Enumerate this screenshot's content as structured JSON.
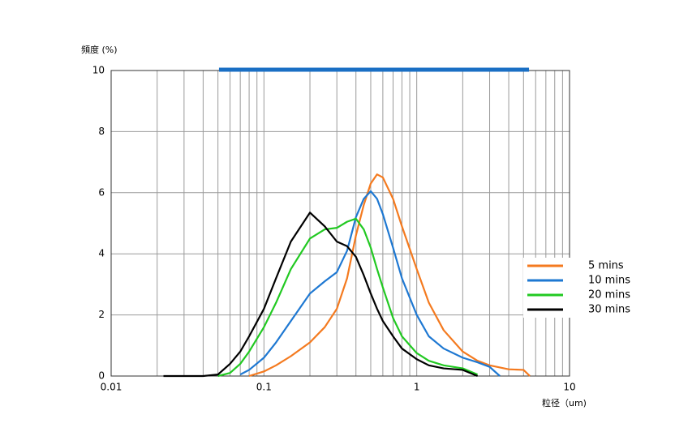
{
  "chart_data": {
    "type": "line",
    "y_label": "頻度 (%)",
    "x_label": "粒径（um)",
    "x": [
      0.022,
      0.03,
      0.04,
      0.05,
      0.06,
      0.07,
      0.08,
      0.1,
      0.12,
      0.15,
      0.2,
      0.25,
      0.3,
      0.35,
      0.4,
      0.45,
      0.5,
      0.55,
      0.6,
      0.7,
      0.8,
      1,
      1.2,
      1.5,
      2,
      2.5,
      3,
      3.5,
      4,
      5,
      5.5
    ],
    "series": [
      {
        "name": "5 mins",
        "color": "#f47a1f",
        "values": [
          null,
          null,
          null,
          null,
          null,
          null,
          0,
          0.15,
          0.35,
          0.65,
          1.1,
          1.6,
          2.2,
          3.2,
          4.6,
          5.6,
          6.3,
          6.6,
          6.5,
          5.8,
          4.9,
          3.5,
          2.4,
          1.5,
          0.8,
          0.5,
          0.35,
          0.28,
          0.22,
          0.2,
          0
        ]
      },
      {
        "name": "10 mins",
        "color": "#1e78d2",
        "values": [
          null,
          null,
          null,
          null,
          null,
          0.05,
          0.2,
          0.6,
          1.1,
          1.8,
          2.7,
          3.1,
          3.4,
          4.1,
          5.2,
          5.8,
          6.05,
          5.8,
          5.3,
          4.2,
          3.2,
          2.0,
          1.3,
          0.9,
          0.6,
          0.45,
          0.3,
          0,
          null,
          null,
          null
        ]
      },
      {
        "name": "20 mins",
        "color": "#22c922",
        "values": [
          null,
          null,
          null,
          0,
          0.1,
          0.4,
          0.8,
          1.6,
          2.4,
          3.5,
          4.5,
          4.8,
          4.85,
          5.05,
          5.15,
          4.8,
          4.2,
          3.5,
          2.9,
          1.9,
          1.3,
          0.75,
          0.5,
          0.35,
          0.25,
          0.05,
          null,
          null,
          null,
          null,
          null
        ]
      },
      {
        "name": "30 mins",
        "color": "#000000",
        "values": [
          0,
          0,
          0,
          0.05,
          0.4,
          0.8,
          1.3,
          2.2,
          3.2,
          4.4,
          5.35,
          4.9,
          4.4,
          4.25,
          3.9,
          3.3,
          2.7,
          2.2,
          1.8,
          1.3,
          0.9,
          0.55,
          0.35,
          0.25,
          0.2,
          0,
          null,
          null,
          null,
          null,
          null
        ]
      }
    ],
    "log_x": true,
    "xlim": [
      0.01,
      10
    ],
    "xticks": [
      0.01,
      0.1,
      1,
      10
    ],
    "x_minor_ticks": [
      0.02,
      0.03,
      0.04,
      0.05,
      0.06,
      0.07,
      0.08,
      0.09,
      0.2,
      0.3,
      0.4,
      0.5,
      0.6,
      0.7,
      0.8,
      0.9,
      2,
      3,
      4,
      5,
      6,
      7,
      8,
      9
    ],
    "ylim": [
      0,
      10
    ],
    "yticks": [
      0,
      2,
      4,
      6,
      8,
      10
    ],
    "grid": true,
    "legend": "right",
    "range_bar": {
      "color": "#1a6fc4",
      "x": [
        0.0508,
        5.43
      ]
    }
  }
}
